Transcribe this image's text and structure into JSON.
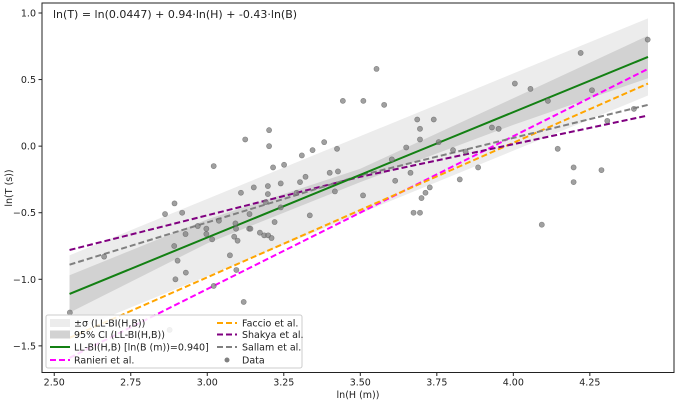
{
  "chart_data": {
    "type": "scatter",
    "title": "",
    "annotation": "ln(T) = ln(0.0447) + 0.94·ln(H) + -0.43·ln(B)",
    "xlabel": "ln(H (m))",
    "ylabel": "ln(T (s))",
    "xlim": [
      2.46,
      4.525
    ],
    "ylim": [
      -1.7,
      1.075
    ],
    "grid": false,
    "legend_position": "lower-left",
    "xticks": [
      2.5,
      2.75,
      3.0,
      3.25,
      3.5,
      3.75,
      4.0,
      4.25
    ],
    "xtick_labels": [
      "2.50",
      "2.75",
      "3.00",
      "3.25",
      "3.50",
      "3.75",
      "4.00",
      "4.25"
    ],
    "yticks": [
      -1.5,
      -1.0,
      -0.5,
      0.0,
      0.5,
      1.0
    ],
    "ytick_labels": [
      "−1.5",
      "−1.0",
      "−0.5",
      "0.0",
      "0.5",
      "1.0"
    ],
    "bands": [
      {
        "name": "±σ (LL-BI(H,B))",
        "color": "#ececec",
        "x": [
          2.55,
          4.44
        ],
        "lower": [
          -1.4,
          0.38
        ],
        "upper": [
          -0.82,
          0.96
        ]
      },
      {
        "name": "95% CI (LL-BI(H,B))",
        "color": "#d2d2d2",
        "x": [
          2.55,
          3.0,
          3.5,
          4.0,
          4.44
        ],
        "lower": [
          -1.25,
          -0.73,
          -0.27,
          0.16,
          0.51
        ],
        "upper": [
          -0.97,
          -0.55,
          -0.17,
          0.36,
          0.83
        ]
      }
    ],
    "series": [
      {
        "name": "Ranieri et al.",
        "color": "#ff00ff",
        "style": "dashed",
        "x": [
          2.55,
          4.44
        ],
        "y": [
          -1.59,
          0.58
        ]
      },
      {
        "name": "Faccio et al.",
        "color": "#ffa500",
        "style": "dashed",
        "x": [
          2.55,
          4.44
        ],
        "y": [
          -1.44,
          0.47
        ]
      },
      {
        "name": "Shakya et al.",
        "color": "#800080",
        "style": "dashed",
        "x": [
          2.55,
          3.5,
          4.44
        ],
        "y": [
          -0.78,
          -0.23,
          0.23
        ]
      },
      {
        "name": "Sallam et al.",
        "color": "#808080",
        "style": "dashed",
        "x": [
          2.55,
          3.5,
          4.44
        ],
        "y": [
          -0.89,
          -0.22,
          0.31
        ]
      },
      {
        "name": "LL-BI(H,B)  [ln(B (m))=0.940]",
        "color": "#138013",
        "style": "solid",
        "x": [
          2.55,
          4.44
        ],
        "y": [
          -1.11,
          0.67
        ]
      }
    ],
    "data_points": {
      "name": "Data",
      "color": "#808080",
      "x": [
        3.124,
        3.021,
        3.11,
        2.862,
        2.893,
        2.918,
        2.969,
        2.997,
        2.997,
        2.929,
        3.016,
        3.038,
        3.092,
        3.094,
        3.088,
        3.099,
        2.892,
        2.663,
        2.903,
        3.074,
        2.93,
        2.896,
        3.095,
        3.021,
        3.119,
        2.551,
        3.137,
        2.877,
        3.202,
        3.202,
        3.215,
        3.251,
        3.309,
        3.344,
        3.382,
        3.424,
        3.4,
        3.427,
        3.321,
        3.303,
        3.24,
        3.198,
        3.152,
        3.198,
        3.292,
        3.553,
        3.443,
        3.51,
        3.578,
        3.686,
        3.74,
        3.695,
        3.695,
        3.65,
        3.603,
        3.756,
        3.803,
        3.664,
        3.614,
        3.509,
        3.417,
        3.191,
        3.24,
        3.138,
        3.335,
        3.22,
        3.141,
        3.172,
        3.186,
        3.199,
        3.21,
        3.727,
        3.713,
        3.7,
        3.674,
        3.695,
        3.825,
        4.439,
        4.22,
        4.005,
        4.056,
        4.257,
        4.113,
        3.93,
        3.952,
        4.394,
        4.307,
        3.844,
        4.145,
        3.885,
        4.197,
        4.197,
        4.288,
        4.093
      ],
      "y": [
        0.05,
        -0.15,
        -0.35,
        -0.51,
        -0.43,
        -0.5,
        -0.6,
        -0.62,
        -0.66,
        -0.66,
        -0.7,
        -0.56,
        -0.58,
        -0.62,
        -0.68,
        -0.71,
        -0.75,
        -0.83,
        -0.86,
        -0.82,
        -0.95,
        -1.0,
        -0.93,
        -1.05,
        -1.17,
        -1.25,
        -0.62,
        -1.38,
        0.12,
        0.0,
        -0.16,
        -0.14,
        -0.07,
        -0.03,
        0.03,
        -0.02,
        -0.2,
        -0.19,
        -0.23,
        -0.27,
        -0.28,
        -0.3,
        -0.31,
        -0.36,
        -0.35,
        0.58,
        0.34,
        0.34,
        0.31,
        0.2,
        0.2,
        0.13,
        0.05,
        -0.01,
        -0.1,
        0.03,
        -0.03,
        -0.2,
        -0.26,
        -0.37,
        -0.34,
        -0.42,
        -0.46,
        -0.51,
        -0.52,
        -0.57,
        -0.62,
        -0.65,
        -0.67,
        -0.67,
        -0.69,
        -0.31,
        -0.35,
        -0.39,
        -0.5,
        -0.5,
        -0.25,
        0.8,
        0.7,
        0.47,
        0.43,
        0.42,
        0.34,
        0.14,
        0.13,
        0.28,
        0.19,
        -0.04,
        -0.02,
        -0.16,
        -0.16,
        -0.27,
        -0.18,
        -0.59
      ]
    },
    "legend": [
      {
        "label": "±σ (LL-BI(H,B))",
        "kind": "band",
        "color": "#ececec"
      },
      {
        "label": "95% CI (LL-BI(H,B))",
        "kind": "band",
        "color": "#d2d2d2"
      },
      {
        "label": "LL-BI(H,B)  [ln(B (m))=0.940]",
        "kind": "solid",
        "color": "#138013"
      },
      {
        "label": "Ranieri et al.",
        "kind": "dashed",
        "color": "#ff00ff"
      },
      {
        "label": "Faccio et al.",
        "kind": "dashed",
        "color": "#ffa500"
      },
      {
        "label": "Shakya et al.",
        "kind": "dashed",
        "color": "#800080"
      },
      {
        "label": "Sallam et al.",
        "kind": "dashed",
        "color": "#808080"
      },
      {
        "label": "Data",
        "kind": "marker",
        "color": "#808080"
      }
    ]
  }
}
